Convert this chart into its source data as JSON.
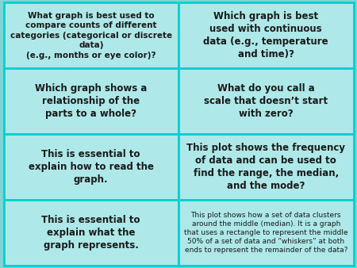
{
  "background_color": "#7fd4d4",
  "cell_bg": "#aee8e8",
  "border_color": "#00d0d0",
  "text_color": "#1a1a1a",
  "cells": [
    {
      "row": 0,
      "col": 0,
      "text": "What graph is best used to\ncompare counts of different\ncategories (categorical or discrete\ndata)\n(e.g., months or eye color)?",
      "fontsize": 7.5,
      "bold": true
    },
    {
      "row": 0,
      "col": 1,
      "text": "Which graph is best\nused with continuous\ndata (e.g., temperature\nand time)?",
      "fontsize": 8.5,
      "bold": true
    },
    {
      "row": 1,
      "col": 0,
      "text": "Which graph shows a\nrelationship of the\nparts to a whole?",
      "fontsize": 8.5,
      "bold": true
    },
    {
      "row": 1,
      "col": 1,
      "text": "What do you call a\nscale that doesn’t start\nwith zero?",
      "fontsize": 8.5,
      "bold": true
    },
    {
      "row": 2,
      "col": 0,
      "text": "This is essential to\nexplain how to read the\ngraph.",
      "fontsize": 8.5,
      "bold": true
    },
    {
      "row": 2,
      "col": 1,
      "text": "This plot shows the frequency\nof data and can be used to\nfind the range, the median,\nand the mode?",
      "fontsize": 8.5,
      "bold": true
    },
    {
      "row": 3,
      "col": 0,
      "text": "This is essential to\nexplain what the\ngraph represents.",
      "fontsize": 8.5,
      "bold": true
    },
    {
      "row": 3,
      "col": 1,
      "text": "This plot shows how a set of data clusters\naround the middle (median). It is a graph\nthat uses a rectangle to represent the middle\n50% of a set of data and “whiskers” at both\nends to represent the remainder of the data?",
      "fontsize": 6.5,
      "bold": false
    }
  ],
  "nrows": 4,
  "ncols": 2,
  "figsize": [
    4.5,
    3.38
  ],
  "dpi": 100,
  "border_lw": 2.0,
  "outer_border_lw": 3.0
}
